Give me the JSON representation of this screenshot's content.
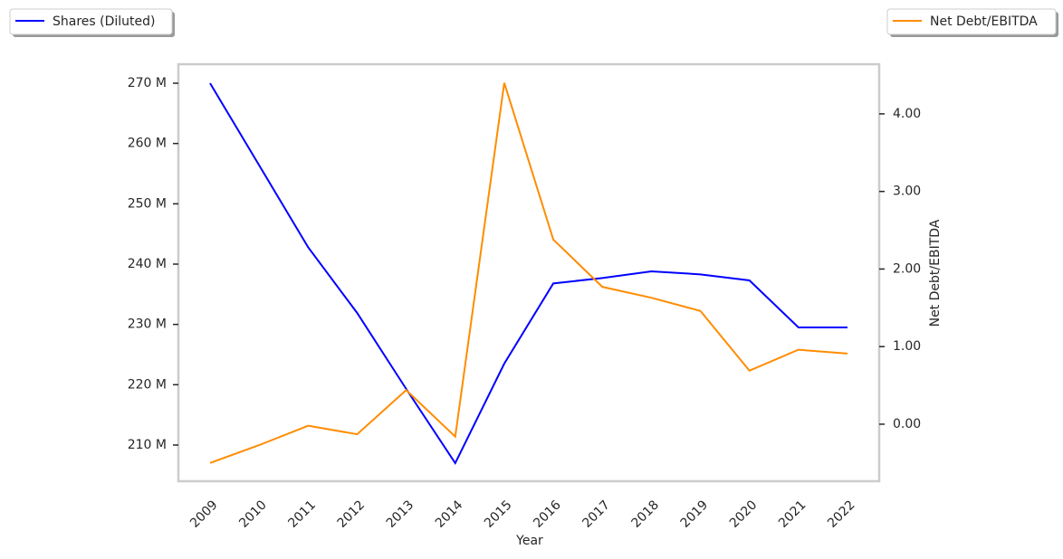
{
  "chart_data": {
    "type": "line",
    "x_label": "Year",
    "y2_label": "Net Debt/EBITDA",
    "categories": [
      "2009",
      "2010",
      "2011",
      "2012",
      "2013",
      "2014",
      "2015",
      "2016",
      "2017",
      "2018",
      "2019",
      "2020",
      "2021",
      "2022"
    ],
    "series": [
      {
        "name": "Shares (Diluted)",
        "color": "#0000ff",
        "axis": "y",
        "legend": "upper left",
        "values": [
          270000000,
          256400000,
          242800000,
          231900000,
          219300000,
          207000000,
          223500000,
          236800000,
          237700000,
          238800000,
          238300000,
          237300000,
          229500000,
          229500000
        ]
      },
      {
        "name": "Net Debt/EBITDA",
        "color": "#ff8c00",
        "axis": "y2",
        "legend": "upper right",
        "values": [
          -0.5,
          -0.27,
          -0.02,
          -0.13,
          0.44,
          -0.16,
          4.4,
          2.38,
          1.77,
          1.63,
          1.46,
          0.69,
          0.96,
          0.91
        ]
      }
    ],
    "ylim": [
      204000000,
      273150000
    ],
    "yticks": [
      {
        "value": 210000000,
        "label": "210 M"
      },
      {
        "value": 220000000,
        "label": "220 M"
      },
      {
        "value": 230000000,
        "label": "230 M"
      },
      {
        "value": 240000000,
        "label": "240 M"
      },
      {
        "value": 250000000,
        "label": "250 M"
      },
      {
        "value": 260000000,
        "label": "260 M"
      },
      {
        "value": 270000000,
        "label": "270 M"
      }
    ],
    "y2lim": [
      -0.735,
      4.64
    ],
    "y2ticks": [
      {
        "value": 0,
        "label": "0.00"
      },
      {
        "value": 1,
        "label": "1.00"
      },
      {
        "value": 2,
        "label": "2.00"
      },
      {
        "value": 3,
        "label": "3.00"
      },
      {
        "value": 4,
        "label": "4.00"
      }
    ],
    "grid": false
  }
}
